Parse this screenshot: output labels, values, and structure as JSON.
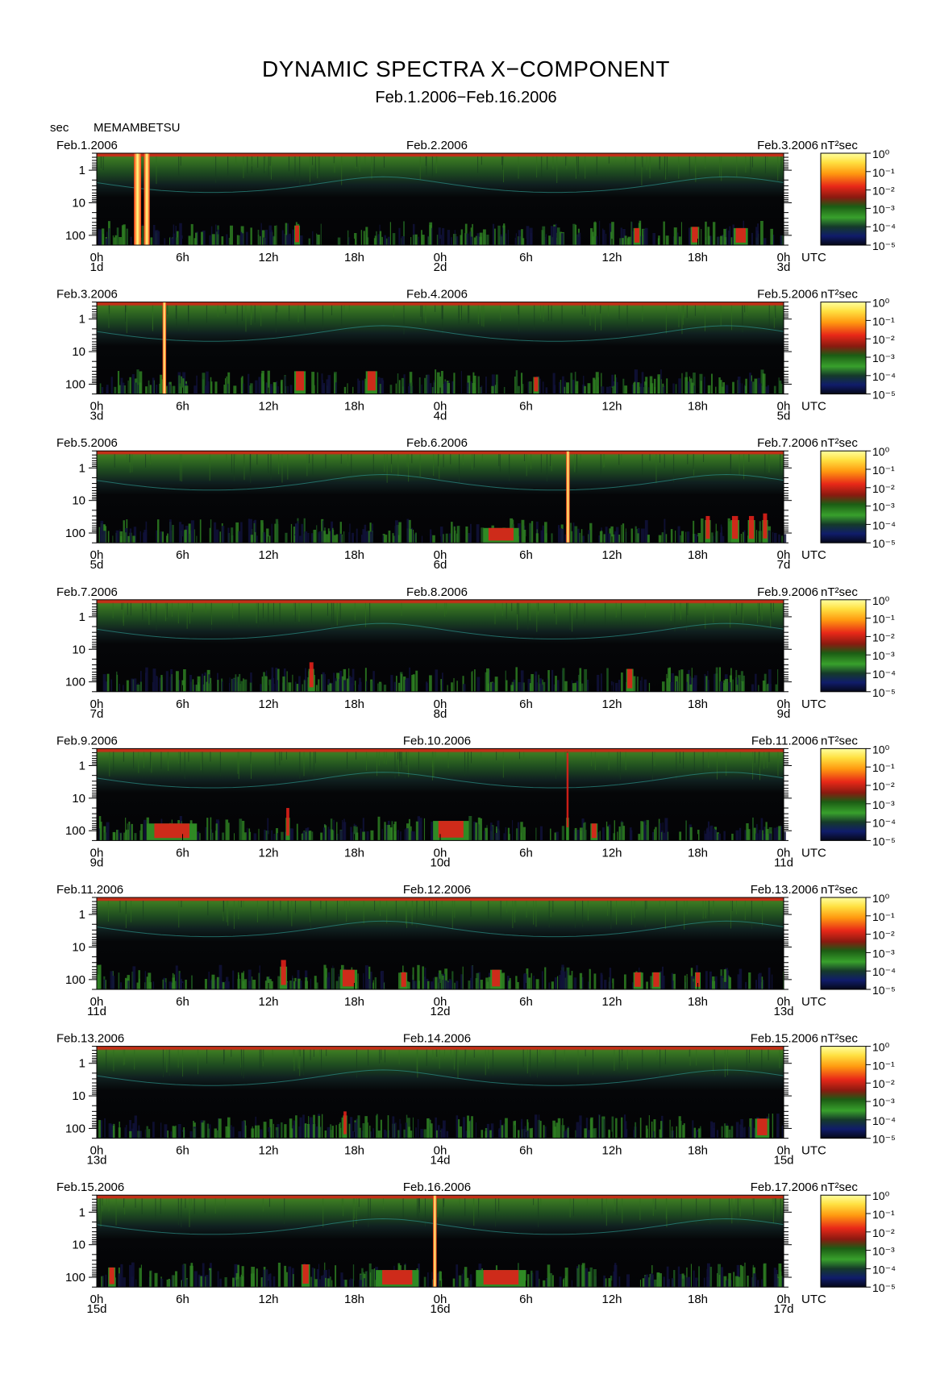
{
  "title": "DYNAMIC SPECTRA X−COMPONENT",
  "subtitle": "Feb.1.2006−Feb.16.2006",
  "y_unit": "sec",
  "station": "MEMAMBETSU",
  "colorbar_unit": "nT²sec",
  "colorbar_labels": [
    "10⁰",
    "10⁻¹",
    "10⁻²",
    "10⁻³",
    "10⁻⁴",
    "10⁻⁵"
  ],
  "colors": {
    "background": "#000000",
    "noise_floor": "#10123a",
    "green": "#2f8a24",
    "red": "#e0201a",
    "orange": "#ff8a10",
    "yellow": "#ffff60",
    "top_band": "#c23018"
  },
  "chart_data": [
    {
      "type": "heatmap",
      "left_date": "Feb.1.2006",
      "mid_date": "Feb.2.2006",
      "right_date": "Feb.3.2006",
      "ytick_labels": [
        "1",
        "10",
        "100"
      ],
      "xtick_labels": [
        "0h",
        "6h",
        "12h",
        "18h",
        "0h",
        "6h",
        "12h",
        "18h",
        "0h"
      ],
      "day_labels": [
        "1d",
        "2d",
        "3d"
      ],
      "time_zone": "UTC",
      "x_range_hours": [
        0,
        48
      ],
      "y_range_sec": [
        0.3,
        200
      ],
      "y_scale": "log",
      "events": [
        {
          "hour": 2.6,
          "width_hours": 0.5,
          "top_sec": 0.3,
          "level": "yellow"
        },
        {
          "hour": 3.3,
          "width_hours": 0.4,
          "top_sec": 0.3,
          "level": "yellow"
        },
        {
          "hour": 13.8,
          "width_hours": 0.4,
          "top_sec": 50,
          "level": "red"
        },
        {
          "hour": 37.5,
          "width_hours": 0.5,
          "top_sec": 60,
          "level": "red"
        },
        {
          "hour": 41.5,
          "width_hours": 0.6,
          "top_sec": 55,
          "level": "red"
        },
        {
          "hour": 44.5,
          "width_hours": 1.0,
          "top_sec": 60,
          "level": "red"
        }
      ]
    },
    {
      "type": "heatmap",
      "left_date": "Feb.3.2006",
      "mid_date": "Feb.4.2006",
      "right_date": "Feb.5.2006",
      "ytick_labels": [
        "1",
        "10",
        "100"
      ],
      "xtick_labels": [
        "0h",
        "6h",
        "12h",
        "18h",
        "0h",
        "6h",
        "12h",
        "18h",
        "0h"
      ],
      "day_labels": [
        "3d",
        "4d",
        "5d"
      ],
      "time_zone": "UTC",
      "x_range_hours": [
        0,
        48
      ],
      "y_range_sec": [
        0.3,
        200
      ],
      "y_scale": "log",
      "events": [
        {
          "hour": 4.6,
          "width_hours": 0.25,
          "top_sec": 0.3,
          "level": "yellow"
        },
        {
          "hour": 13.8,
          "width_hours": 0.8,
          "top_sec": 40,
          "level": "red"
        },
        {
          "hour": 18.8,
          "width_hours": 0.8,
          "top_sec": 40,
          "level": "red"
        },
        {
          "hour": 30.5,
          "width_hours": 0.4,
          "top_sec": 60,
          "level": "red"
        }
      ]
    },
    {
      "type": "heatmap",
      "left_date": "Feb.5.2006",
      "mid_date": "Feb.6.2006",
      "right_date": "Feb.7.2006",
      "ytick_labels": [
        "1",
        "10",
        "100"
      ],
      "xtick_labels": [
        "0h",
        "6h",
        "12h",
        "18h",
        "0h",
        "6h",
        "12h",
        "18h",
        "0h"
      ],
      "day_labels": [
        "5d",
        "6d",
        "7d"
      ],
      "time_zone": "UTC",
      "x_range_hours": [
        0,
        48
      ],
      "y_range_sec": [
        0.3,
        200
      ],
      "y_scale": "log",
      "events": [
        {
          "hour": 32.8,
          "width_hours": 0.25,
          "top_sec": 0.3,
          "level": "yellow"
        },
        {
          "hour": 27.0,
          "width_hours": 2.5,
          "top_sec": 70,
          "level": "red"
        },
        {
          "hour": 42.5,
          "width_hours": 0.4,
          "top_sec": 30,
          "level": "red"
        },
        {
          "hour": 44.3,
          "width_hours": 0.6,
          "top_sec": 30,
          "level": "red"
        },
        {
          "hour": 45.5,
          "width_hours": 0.5,
          "top_sec": 30,
          "level": "red"
        },
        {
          "hour": 46.5,
          "width_hours": 0.4,
          "top_sec": 25,
          "level": "red"
        }
      ]
    },
    {
      "type": "heatmap",
      "left_date": "Feb.7.2006",
      "mid_date": "Feb.8.2006",
      "right_date": "Feb.9.2006",
      "ytick_labels": [
        "1",
        "10",
        "100"
      ],
      "xtick_labels": [
        "0h",
        "6h",
        "12h",
        "18h",
        "0h",
        "6h",
        "12h",
        "18h",
        "0h"
      ],
      "day_labels": [
        "7d",
        "8d",
        "9d"
      ],
      "time_zone": "UTC",
      "x_range_hours": [
        0,
        48
      ],
      "y_range_sec": [
        0.3,
        200
      ],
      "y_scale": "log",
      "events": [
        {
          "hour": 14.8,
          "width_hours": 0.4,
          "top_sec": 25,
          "level": "red"
        },
        {
          "hour": 37.0,
          "width_hours": 0.5,
          "top_sec": 40,
          "level": "red"
        }
      ]
    },
    {
      "type": "heatmap",
      "left_date": "Feb.9.2006",
      "mid_date": "Feb.10.2006",
      "right_date": "Feb.11.2006",
      "ytick_labels": [
        "1",
        "10",
        "100"
      ],
      "xtick_labels": [
        "0h",
        "6h",
        "12h",
        "18h",
        "0h",
        "6h",
        "12h",
        "18h",
        "0h"
      ],
      "day_labels": [
        "9d",
        "10d",
        "11d"
      ],
      "time_zone": "UTC",
      "x_range_hours": [
        0,
        48
      ],
      "y_range_sec": [
        0.3,
        200
      ],
      "y_scale": "log",
      "events": [
        {
          "hour": 32.8,
          "width_hours": 0.2,
          "top_sec": 0.4,
          "level": "red"
        },
        {
          "hour": 3.5,
          "width_hours": 3.5,
          "top_sec": 60,
          "level": "red"
        },
        {
          "hour": 13.2,
          "width_hours": 0.3,
          "top_sec": 20,
          "level": "red"
        },
        {
          "hour": 23.5,
          "width_hours": 2.5,
          "top_sec": 50,
          "level": "red"
        },
        {
          "hour": 34.5,
          "width_hours": 0.5,
          "top_sec": 60,
          "level": "red"
        }
      ]
    },
    {
      "type": "heatmap",
      "left_date": "Feb.11.2006",
      "mid_date": "Feb.12.2006",
      "right_date": "Feb.13.2006",
      "ytick_labels": [
        "1",
        "10",
        "100"
      ],
      "xtick_labels": [
        "0h",
        "6h",
        "12h",
        "18h",
        "0h",
        "6h",
        "12h",
        "18h",
        "0h"
      ],
      "day_labels": [
        "11d",
        "12d",
        "13d"
      ],
      "time_zone": "UTC",
      "x_range_hours": [
        0,
        48
      ],
      "y_range_sec": [
        0.3,
        200
      ],
      "y_scale": "log",
      "events": [
        {
          "hour": 12.8,
          "width_hours": 0.5,
          "top_sec": 25,
          "level": "red"
        },
        {
          "hour": 17.0,
          "width_hours": 1.2,
          "top_sec": 50,
          "level": "red"
        },
        {
          "hour": 21.2,
          "width_hours": 0.5,
          "top_sec": 60,
          "level": "red"
        },
        {
          "hour": 27.5,
          "width_hours": 0.8,
          "top_sec": 50,
          "level": "red"
        },
        {
          "hour": 37.5,
          "width_hours": 0.6,
          "top_sec": 60,
          "level": "red"
        },
        {
          "hour": 38.8,
          "width_hours": 0.6,
          "top_sec": 60,
          "level": "red"
        },
        {
          "hour": 41.8,
          "width_hours": 0.4,
          "top_sec": 60,
          "level": "red"
        }
      ]
    },
    {
      "type": "heatmap",
      "left_date": "Feb.13.2006",
      "mid_date": "Feb.14.2006",
      "right_date": "Feb.15.2006",
      "ytick_labels": [
        "1",
        "10",
        "100"
      ],
      "xtick_labels": [
        "0h",
        "6h",
        "12h",
        "18h",
        "0h",
        "6h",
        "12h",
        "18h",
        "0h"
      ],
      "day_labels": [
        "13d",
        "14d",
        "15d"
      ],
      "time_zone": "UTC",
      "x_range_hours": [
        0,
        48
      ],
      "y_range_sec": [
        0.3,
        200
      ],
      "y_scale": "log",
      "events": [
        {
          "hour": 17.2,
          "width_hours": 0.3,
          "top_sec": 30,
          "level": "red"
        },
        {
          "hour": 46.0,
          "width_hours": 1.0,
          "top_sec": 50,
          "level": "red"
        }
      ]
    },
    {
      "type": "heatmap",
      "left_date": "Feb.15.2006",
      "mid_date": "Feb.16.2006",
      "right_date": "Feb.17.2006",
      "ytick_labels": [
        "1",
        "10",
        "100"
      ],
      "xtick_labels": [
        "0h",
        "6h",
        "12h",
        "18h",
        "0h",
        "6h",
        "12h",
        "18h",
        "0h"
      ],
      "day_labels": [
        "15d",
        "16d",
        "17d"
      ],
      "time_zone": "UTC",
      "x_range_hours": [
        0,
        48
      ],
      "y_range_sec": [
        0.3,
        200
      ],
      "y_scale": "log",
      "events": [
        {
          "hour": 23.5,
          "width_hours": 0.25,
          "top_sec": 0.3,
          "level": "yellow"
        },
        {
          "hour": 0.8,
          "width_hours": 0.5,
          "top_sec": 50,
          "level": "red"
        },
        {
          "hour": 14.3,
          "width_hours": 0.6,
          "top_sec": 40,
          "level": "red"
        },
        {
          "hour": 19.5,
          "width_hours": 3.0,
          "top_sec": 60,
          "level": "red"
        },
        {
          "hour": 26.5,
          "width_hours": 3.5,
          "top_sec": 60,
          "level": "red"
        }
      ]
    }
  ]
}
